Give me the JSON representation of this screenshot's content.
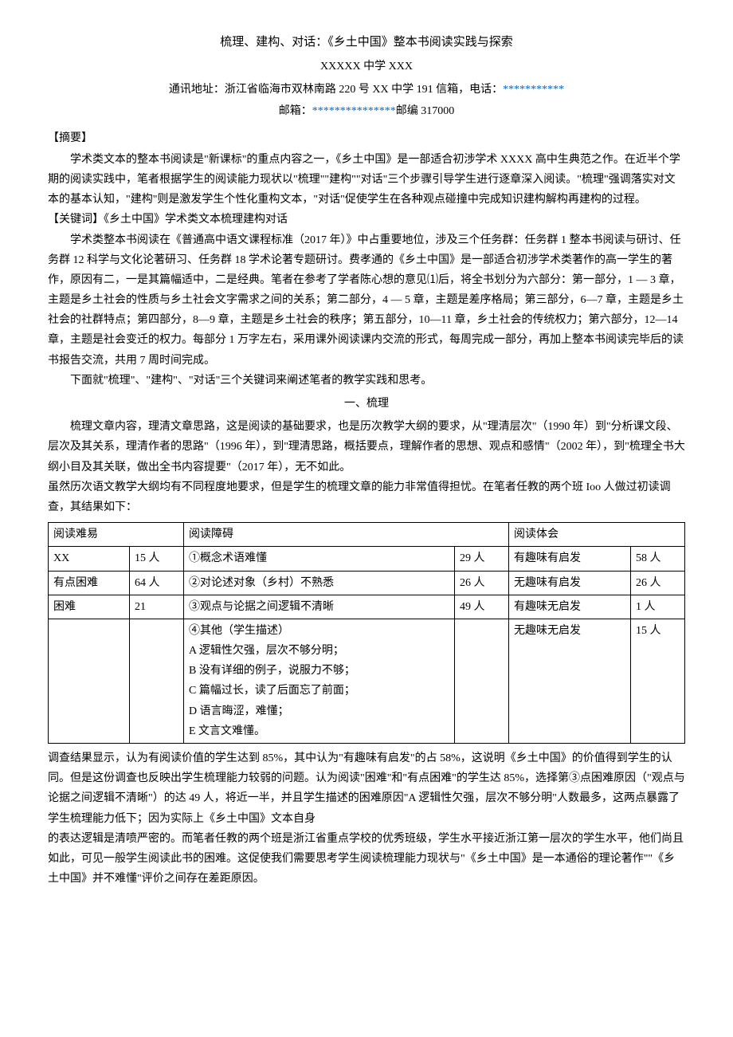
{
  "title": "梳理、建构、对话：《乡土中国》整本书阅读实践与探索",
  "school": "XXXXX 中学 XXX",
  "address_prefix": "通讯地址：浙江省临海市双林南路 220 号 XX 中学 191 信箱，电话：",
  "phone": "***********",
  "email_prefix": "邮箱：",
  "email": "***************",
  "postcode_label": "邮编 317000",
  "abstract_label": "【摘要】",
  "abstract_p1": "学术类文本的整本书阅读是\"新课标\"的重点内容之一，《乡土中国》是一部适合初涉学术 XXXX 高中生典范之作。在近半个学期的阅读实践中，笔者根据学生的阅读能力现状以\"梳理\"\"建构\"\"对话\"三个步骤引导学生进行逐章深入阅读。\"梳理\"强调落实对文本的基本认知，\"建构\"则是激发学生个性化重构文本，\"对话\"促使学生在各种观点碰撞中完成知识建构解构再建构的过程。",
  "keywords_label": "【关键词】《乡土中国》学术类文本梳理建构对话",
  "body_p1": "学术类整本书阅读在《普通高中语文课程标准（2017 年）》中占重要地位，涉及三个任务群：任务群 1 整本书阅读与研讨、任务群 12 科学与文化论著研习、任务群 18 学术论著专题研讨。费孝通的《乡土中国》是一部适合初涉学术类著作的高一学生的著作，原因有二，一是其篇幅适中，二是经典。笔者在参考了学者陈心想的意见⑴后，将全书划分为六部分：第一部分，1 — 3 章，主题是乡土社会的性质与乡土社会文字需求之间的关系；第二部分，4 — 5 章，主题是差序格局；第三部分，6—7 章，主题是乡土社会的社群特点；第四部分，8—9 章，主题是乡土社会的秩序；第五部分，10—11 章，乡土社会的传统权力；第六部分，12—14 章，主题是社会变迁的权力。每部分 1 万字左右，采用课外阅读课内交流的形式，每周完成一部分，再加上整本书阅读完毕后的读书报告交流，共用 7 周时间完成。",
  "body_p2": "下面就\"梳理\"、\"建构\"、\"对话\"三个关键词来阐述笔者的教学实践和思考。",
  "section1_title": "一、梳理",
  "section1_p1": "梳理文章内容，理清文章思路，这是阅读的基础要求，也是历次教学大纲的要求，从\"理清层次\"（1990 年）到\"分析课文段、层次及其关系，理清作者的思路\"（1996 年），到\"理清思路，概括要点，理解作者的思想、观点和感情\"（2002 年），到\"梳理全书大纲小目及其关联，做出全书内容提要\"（2017 年），无不如此。",
  "section1_p2": "虽然历次语文教学大纲均有不同程度地要求，但是学生的梳理文章的能力非常值得担忧。在笔者任教的两个班 Ioo 人做过初读调查，其结果如下：",
  "table": {
    "header": {
      "col1": "阅读难易",
      "col3": "阅读障碍",
      "col5": "阅读体会"
    },
    "rows": [
      {
        "c1": "XX",
        "c2": "15 人",
        "c3": "①概念术语难懂",
        "c4": "29 人",
        "c5": "有趣味有启发",
        "c6": "58 人"
      },
      {
        "c1": "有点困难",
        "c2": "64 人",
        "c3": "②对论述对象（乡村）不熟悉",
        "c4": "26 人",
        "c5": "无趣味有启发",
        "c6": "26 人"
      },
      {
        "c1": "困难",
        "c2": "21",
        "c3": "③观点与论据之间逻辑不清晰",
        "c4": "49 人",
        "c5": "有趣味无启发",
        "c6": "1 人"
      },
      {
        "c1": "",
        "c2": "",
        "c3": "④其他（学生描述）\nA 逻辑性欠强，层次不够分明；\nB 没有详细的例子，说服力不够；\nC 篇幅过长，读了后面忘了前面；\nD 语言晦涩，难懂；\nE 文言文难懂。",
        "c4": "",
        "c5": "无趣味无启发",
        "c6": "15 人"
      }
    ]
  },
  "section1_p3": "调查结果显示，认为有阅读价值的学生达到 85%，其中认为\"有趣味有启发\"的占 58%，这说明《乡土中国》的价值得到学生的认同。但是这份调查也反映出学生梳理能力较弱的问题。认为阅读\"困难\"和\"有点困难\"的学生达 85%，选择第③点困难原因（\"观点与论据之间逻辑不清晰\"）的达 49 人，将近一半，并且学生描述的困难原因\"A 逻辑性欠强，层次不够分明\"人数最多，这两点暴露了学生梳理能力低下；因为实际上《乡土中国》文本自身",
  "section1_p4": "的表达逻辑是清喷严密的。而笔者任教的两个班是浙江省重点学校的优秀班级，学生水平接近浙江第一层次的学生水平，他们尚且如此，可见一般学生阅读此书的困难。这促使我们需要思考学生阅读梳理能力现状与\"《乡土中国》是一本通俗的理论著作\"\"《乡土中国》并不难懂\"评价之间存在差距原因。"
}
